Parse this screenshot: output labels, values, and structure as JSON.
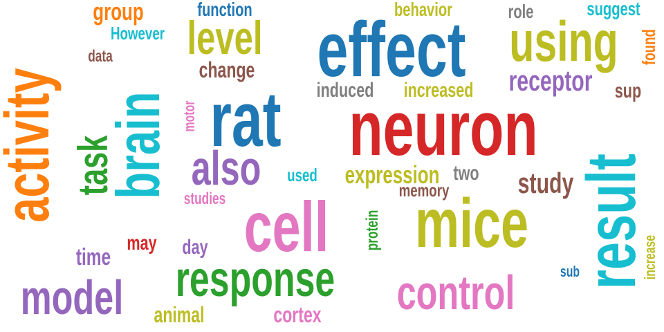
{
  "colors": {
    "orange": "#ff7f0e",
    "blue": "#1f77b4",
    "olive": "#bcbd22",
    "cyan": "#17becf",
    "red": "#d62728",
    "purple": "#9467bd",
    "pink": "#e377c2",
    "green": "#2ca02c",
    "brown": "#8c564b",
    "gray": "#7f7f7f"
  },
  "words": [
    {
      "text": "effect",
      "color": "#1f77b4"
    },
    {
      "text": "neuron",
      "color": "#d62728"
    },
    {
      "text": "mice",
      "color": "#bcbd22"
    },
    {
      "text": "cell",
      "color": "#e377c2"
    },
    {
      "text": "rat",
      "color": "#1f77b4"
    },
    {
      "text": "activity",
      "color": "#ff7f0e"
    },
    {
      "text": "brain",
      "color": "#17becf"
    },
    {
      "text": "result",
      "color": "#17becf"
    },
    {
      "text": "response",
      "color": "#2ca02c"
    },
    {
      "text": "using",
      "color": "#bcbd22"
    },
    {
      "text": "control",
      "color": "#e377c2"
    },
    {
      "text": "model",
      "color": "#9467bd"
    },
    {
      "text": "level",
      "color": "#bcbd22"
    },
    {
      "text": "also",
      "color": "#9467bd"
    },
    {
      "text": "task",
      "color": "#2ca02c"
    },
    {
      "text": "receptor",
      "color": "#9467bd"
    },
    {
      "text": "study",
      "color": "#8c564b"
    },
    {
      "text": "group",
      "color": "#ff7f0e"
    },
    {
      "text": "expression",
      "color": "#bcbd22"
    },
    {
      "text": "change",
      "color": "#8c564b"
    },
    {
      "text": "induced",
      "color": "#7f7f7f"
    },
    {
      "text": "increased",
      "color": "#bcbd22"
    },
    {
      "text": "animal",
      "color": "#bcbd22"
    },
    {
      "text": "cortex",
      "color": "#e377c2"
    },
    {
      "text": "time",
      "color": "#9467bd"
    },
    {
      "text": "may",
      "color": "#d62728"
    },
    {
      "text": "day",
      "color": "#9467bd"
    },
    {
      "text": "function",
      "color": "#1f77b4"
    },
    {
      "text": "behavior",
      "color": "#bcbd22"
    },
    {
      "text": "role",
      "color": "#7f7f7f"
    },
    {
      "text": "suggest",
      "color": "#17becf"
    },
    {
      "text": "However",
      "color": "#17becf"
    },
    {
      "text": "found",
      "color": "#ff7f0e"
    },
    {
      "text": "data",
      "color": "#8c564b"
    },
    {
      "text": "sup",
      "color": "#8c564b"
    },
    {
      "text": "motor",
      "color": "#e377c2"
    },
    {
      "text": "used",
      "color": "#17becf"
    },
    {
      "text": "two",
      "color": "#7f7f7f"
    },
    {
      "text": "memory",
      "color": "#8c564b"
    },
    {
      "text": "studies",
      "color": "#e377c2"
    },
    {
      "text": "protein",
      "color": "#2ca02c"
    },
    {
      "text": "increase",
      "color": "#bcbd22"
    },
    {
      "text": "sub",
      "color": "#1f77b4"
    }
  ]
}
